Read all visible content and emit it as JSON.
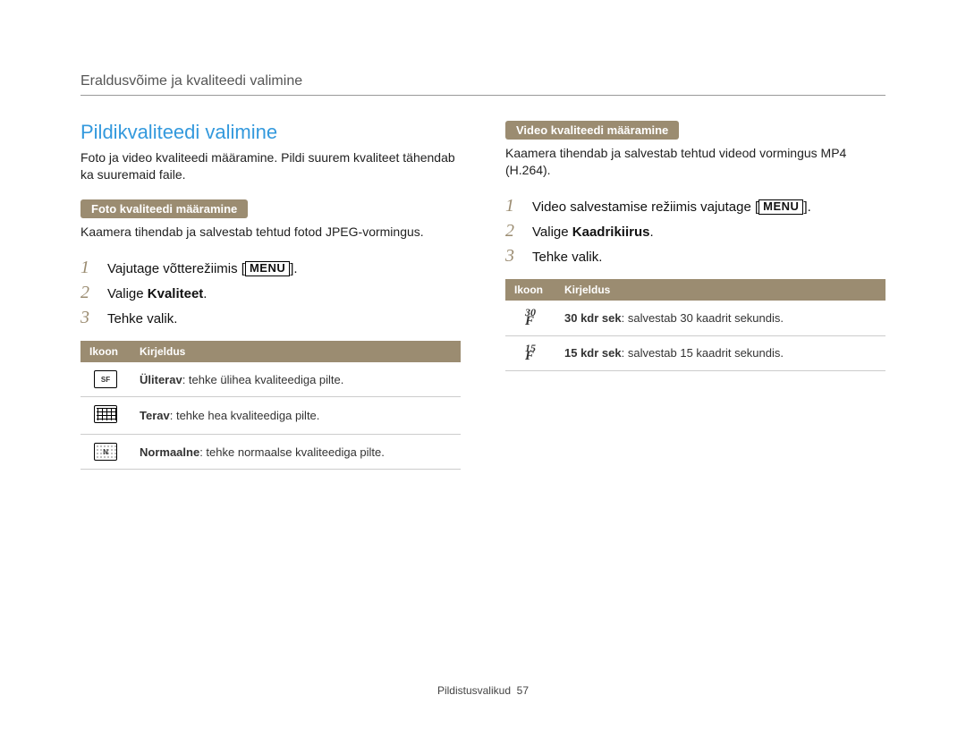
{
  "header": {
    "title": "Eraldusvõime ja kvaliteedi valimine"
  },
  "left": {
    "section_title": "Pildikvaliteedi valimine",
    "intro": "Foto ja video kvaliteedi määramine. Pildi suurem kvaliteet tähendab ka suuremaid faile.",
    "pill": "Foto kvaliteedi määramine",
    "subtext": "Kaamera tihendab ja salvestab tehtud fotod JPEG-vormingus.",
    "steps": {
      "s1_pre": "Vajutage võtterežiimis [",
      "s1_post": "].",
      "s2_pre": "Valige ",
      "s2_bold": "Kvaliteet",
      "s2_post": ".",
      "s3": "Tehke valik."
    },
    "table": {
      "h1": "Ikoon",
      "h2": "Kirjeldus",
      "r1_bold": "Üliterav",
      "r1_rest": ": tehke ülihea kvaliteediga pilte.",
      "r2_bold": "Terav",
      "r2_rest": ": tehke hea kvaliteediga pilte.",
      "r3_bold": "Normaalne",
      "r3_rest": ": tehke normaalse kvaliteediga pilte."
    }
  },
  "right": {
    "pill": "Video kvaliteedi määramine",
    "subtext": "Kaamera tihendab ja salvestab tehtud videod vormingus MP4 (H.264).",
    "steps": {
      "s1_pre": "Video salvestamise režiimis vajutage [",
      "s1_post": "].",
      "s2_pre": "Valige ",
      "s2_bold": "Kaadrikiirus",
      "s2_post": ".",
      "s3": "Tehke valik."
    },
    "table": {
      "h1": "Ikoon",
      "h2": "Kirjeldus",
      "r1_bold": "30 kdr sek",
      "r1_rest": ": salvestab 30 kaadrit sekundis.",
      "r2_bold": "15 kdr sek",
      "r2_rest": ": salvestab 15 kaadrit sekundis."
    }
  },
  "menu_label": "MENU",
  "footer": {
    "label": "Pildistusvalikud",
    "page": "57"
  },
  "icons": {
    "rate30_top": "30",
    "rate30_bot": "F",
    "rate15_top": "15",
    "rate15_bot": "F",
    "sf": "SF",
    "n": "N"
  }
}
